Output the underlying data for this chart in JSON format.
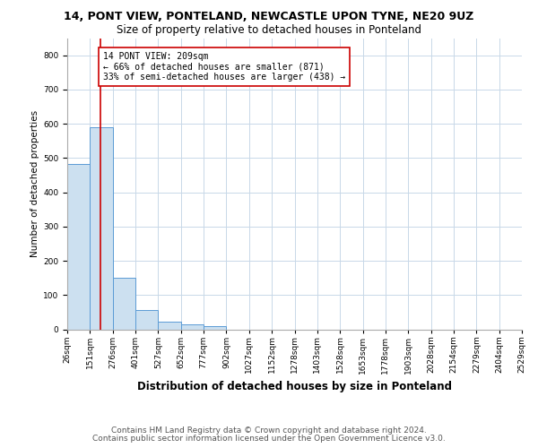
{
  "title1": "14, PONT VIEW, PONTELAND, NEWCASTLE UPON TYNE, NE20 9UZ",
  "title2": "Size of property relative to detached houses in Ponteland",
  "xlabel": "Distribution of detached houses by size in Ponteland",
  "ylabel": "Number of detached properties",
  "bar_edges": [
    26,
    151,
    276,
    401,
    527,
    652,
    777,
    902,
    1027,
    1152,
    1278,
    1403,
    1528,
    1653,
    1778,
    1903,
    2028,
    2154,
    2279,
    2404,
    2529
  ],
  "bar_heights": [
    483,
    591,
    150,
    57,
    22,
    15,
    8,
    0,
    0,
    0,
    0,
    0,
    0,
    0,
    0,
    0,
    0,
    0,
    0,
    0
  ],
  "bar_color": "#cce0f0",
  "bar_edgecolor": "#5b9bd5",
  "property_line_x": 209,
  "property_line_color": "#cc0000",
  "annotation_text": "14 PONT VIEW: 209sqm\n← 66% of detached houses are smaller (871)\n33% of semi-detached houses are larger (438) →",
  "annotation_box_color": "#cc0000",
  "annotation_text_color": "#000000",
  "ylim": [
    0,
    850
  ],
  "yticks": [
    0,
    100,
    200,
    300,
    400,
    500,
    600,
    700,
    800
  ],
  "tick_labels": [
    "26sqm",
    "151sqm",
    "276sqm",
    "401sqm",
    "527sqm",
    "652sqm",
    "777sqm",
    "902sqm",
    "1027sqm",
    "1152sqm",
    "1278sqm",
    "1403sqm",
    "1528sqm",
    "1653sqm",
    "1778sqm",
    "1903sqm",
    "2028sqm",
    "2154sqm",
    "2279sqm",
    "2404sqm",
    "2529sqm"
  ],
  "footer1": "Contains HM Land Registry data © Crown copyright and database right 2024.",
  "footer2": "Contains public sector information licensed under the Open Government Licence v3.0.",
  "background_color": "#ffffff",
  "grid_color": "#c8d8e8",
  "title1_fontsize": 9,
  "title2_fontsize": 8.5,
  "xlabel_fontsize": 8.5,
  "ylabel_fontsize": 7.5,
  "tick_fontsize": 6.5,
  "annotation_fontsize": 7,
  "footer_fontsize": 6.5
}
